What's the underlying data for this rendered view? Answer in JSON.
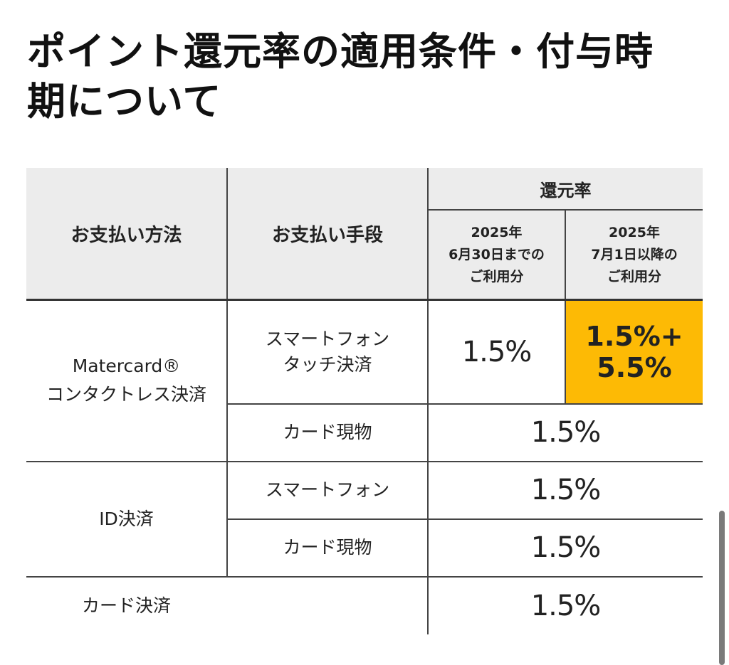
{
  "title": {
    "line1": "ポイント還元率の適用条件・付与時",
    "line2": "期について"
  },
  "table": {
    "header": {
      "payment_method": "お支払い方法",
      "payment_means": "お支払い手段",
      "rate_group": "還元率",
      "period1": [
        "2025年",
        "6月30日までの",
        "ご利用分"
      ],
      "period2": [
        "2025年",
        "7月1日以降の",
        "ご利用分"
      ]
    },
    "rows": {
      "contactless": {
        "method": [
          "Matercard®",
          "コンタクトレス決済"
        ],
        "smartphone_means": [
          "スマートフォン",
          "タッチ決済"
        ],
        "smartphone_rate_before": "1.5%",
        "smartphone_rate_after": [
          "1.5%+",
          "5.5%"
        ],
        "card_means": "カード現物",
        "card_rate": "1.5%"
      },
      "id": {
        "method": "ID決済",
        "smartphone_means": "スマートフォン",
        "smartphone_rate": "1.5%",
        "card_means": "カード現物",
        "card_rate": "1.5%"
      },
      "card_payment": {
        "method": "カード決済",
        "rate": "1.5%"
      }
    },
    "highlight_color": "#fdba05",
    "header_bg_color": "#ececec"
  }
}
